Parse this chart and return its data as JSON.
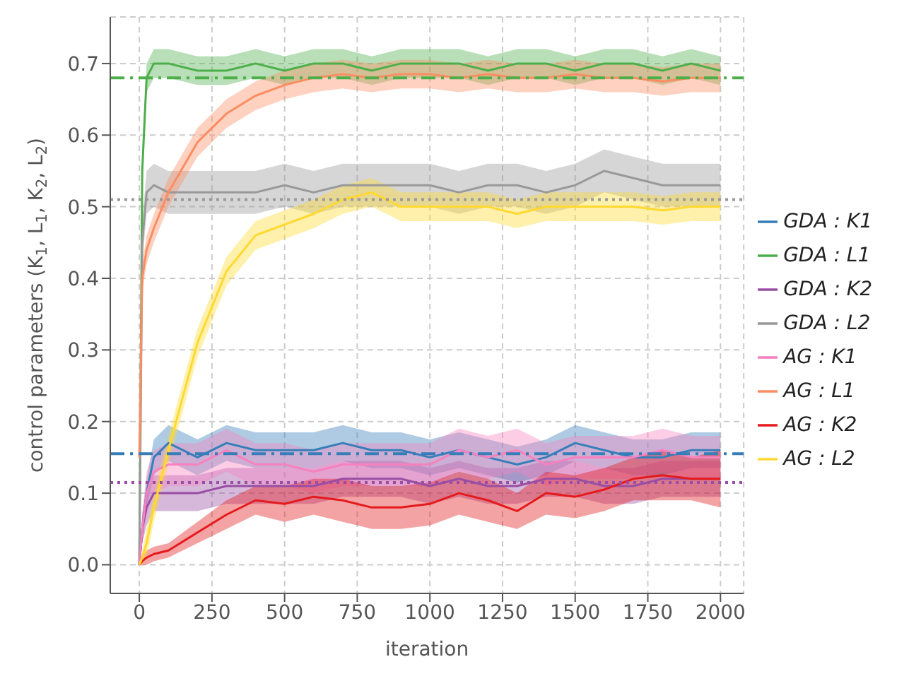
{
  "chart_data": {
    "type": "line",
    "xlabel": "iteration",
    "ylabel": "control parameters (K$_{1}$, L$_{1}$, K$_{2}$, L$_{2}$)",
    "x": [
      0,
      10,
      25,
      50,
      100,
      200,
      300,
      400,
      500,
      600,
      700,
      800,
      900,
      1000,
      1100,
      1200,
      1300,
      1400,
      1500,
      1600,
      1700,
      1800,
      1900,
      2000
    ],
    "xlim": [
      -100,
      2080
    ],
    "xticks": [
      0,
      250,
      500,
      750,
      1000,
      1250,
      1500,
      1750,
      2000
    ],
    "ylim": [
      -0.04,
      0.765
    ],
    "yticks": [
      {
        "value": 0,
        "label": "0.0"
      },
      0.1,
      0.2,
      0.3,
      0.4,
      0.5,
      0.6,
      0.7
    ],
    "grid": true,
    "legend": "right",
    "series": [
      {
        "name": "GDA : K1",
        "color": "#377eb8",
        "values": [
          0.0,
          0.05,
          0.1,
          0.15,
          0.17,
          0.15,
          0.17,
          0.16,
          0.16,
          0.16,
          0.17,
          0.16,
          0.16,
          0.15,
          0.16,
          0.15,
          0.14,
          0.15,
          0.17,
          0.16,
          0.15,
          0.15,
          0.16,
          0.16
        ],
        "lower": [
          0.0,
          0.03,
          0.08,
          0.125,
          0.145,
          0.125,
          0.145,
          0.135,
          0.135,
          0.135,
          0.145,
          0.135,
          0.135,
          0.125,
          0.135,
          0.125,
          0.115,
          0.125,
          0.145,
          0.135,
          0.125,
          0.125,
          0.135,
          0.135
        ],
        "upper": [
          0.0,
          0.07,
          0.12,
          0.175,
          0.195,
          0.175,
          0.195,
          0.185,
          0.185,
          0.185,
          0.195,
          0.185,
          0.185,
          0.175,
          0.185,
          0.175,
          0.165,
          0.175,
          0.195,
          0.185,
          0.175,
          0.175,
          0.185,
          0.185
        ]
      },
      {
        "name": "GDA : L1",
        "color": "#4daf4a",
        "values": [
          0.0,
          0.55,
          0.68,
          0.7,
          0.7,
          0.69,
          0.69,
          0.7,
          0.69,
          0.7,
          0.7,
          0.69,
          0.7,
          0.7,
          0.7,
          0.69,
          0.7,
          0.7,
          0.69,
          0.7,
          0.7,
          0.69,
          0.7,
          0.69
        ],
        "lower": [
          0.0,
          0.52,
          0.66,
          0.68,
          0.68,
          0.67,
          0.67,
          0.68,
          0.67,
          0.68,
          0.68,
          0.67,
          0.68,
          0.68,
          0.68,
          0.67,
          0.68,
          0.68,
          0.67,
          0.68,
          0.68,
          0.67,
          0.68,
          0.67
        ],
        "upper": [
          0.0,
          0.58,
          0.7,
          0.72,
          0.72,
          0.71,
          0.71,
          0.72,
          0.71,
          0.72,
          0.72,
          0.71,
          0.72,
          0.72,
          0.72,
          0.71,
          0.72,
          0.72,
          0.71,
          0.72,
          0.72,
          0.71,
          0.72,
          0.71
        ]
      },
      {
        "name": "GDA : K2",
        "color": "#984ea3",
        "values": [
          0.0,
          0.05,
          0.08,
          0.1,
          0.1,
          0.1,
          0.11,
          0.11,
          0.11,
          0.11,
          0.12,
          0.12,
          0.12,
          0.11,
          0.12,
          0.11,
          0.11,
          0.12,
          0.12,
          0.11,
          0.11,
          0.12,
          0.12,
          0.12
        ],
        "lower": [
          0.0,
          0.03,
          0.055,
          0.075,
          0.075,
          0.075,
          0.085,
          0.085,
          0.085,
          0.085,
          0.095,
          0.095,
          0.095,
          0.085,
          0.095,
          0.085,
          0.085,
          0.095,
          0.095,
          0.085,
          0.085,
          0.095,
          0.095,
          0.095
        ],
        "upper": [
          0.0,
          0.07,
          0.105,
          0.125,
          0.125,
          0.125,
          0.135,
          0.135,
          0.135,
          0.135,
          0.145,
          0.145,
          0.145,
          0.135,
          0.145,
          0.135,
          0.135,
          0.145,
          0.145,
          0.135,
          0.135,
          0.145,
          0.145,
          0.145
        ]
      },
      {
        "name": "GDA : L2",
        "color": "#999999",
        "values": [
          0.0,
          0.45,
          0.52,
          0.53,
          0.52,
          0.52,
          0.52,
          0.52,
          0.53,
          0.52,
          0.53,
          0.53,
          0.53,
          0.53,
          0.52,
          0.53,
          0.53,
          0.52,
          0.53,
          0.55,
          0.54,
          0.53,
          0.53,
          0.53
        ],
        "lower": [
          0.0,
          0.42,
          0.49,
          0.5,
          0.49,
          0.49,
          0.49,
          0.49,
          0.5,
          0.49,
          0.5,
          0.5,
          0.5,
          0.5,
          0.49,
          0.5,
          0.5,
          0.49,
          0.5,
          0.52,
          0.51,
          0.5,
          0.5,
          0.5
        ],
        "upper": [
          0.0,
          0.48,
          0.55,
          0.56,
          0.55,
          0.55,
          0.55,
          0.55,
          0.56,
          0.55,
          0.56,
          0.56,
          0.56,
          0.56,
          0.55,
          0.56,
          0.56,
          0.55,
          0.56,
          0.58,
          0.57,
          0.56,
          0.56,
          0.56
        ]
      },
      {
        "name": "AG : K1",
        "color": "#f781bf",
        "values": [
          0.0,
          0.05,
          0.1,
          0.13,
          0.14,
          0.14,
          0.16,
          0.14,
          0.14,
          0.13,
          0.14,
          0.14,
          0.14,
          0.14,
          0.16,
          0.15,
          0.16,
          0.14,
          0.15,
          0.15,
          0.15,
          0.16,
          0.15,
          0.15
        ],
        "lower": [
          0.0,
          0.03,
          0.07,
          0.1,
          0.11,
          0.11,
          0.13,
          0.11,
          0.11,
          0.1,
          0.11,
          0.11,
          0.11,
          0.11,
          0.13,
          0.12,
          0.13,
          0.11,
          0.12,
          0.12,
          0.12,
          0.13,
          0.12,
          0.12
        ],
        "upper": [
          0.0,
          0.07,
          0.13,
          0.16,
          0.17,
          0.17,
          0.19,
          0.17,
          0.17,
          0.16,
          0.17,
          0.17,
          0.17,
          0.17,
          0.19,
          0.18,
          0.19,
          0.17,
          0.18,
          0.18,
          0.18,
          0.19,
          0.18,
          0.18
        ]
      },
      {
        "name": "AG : L1",
        "color": "#fc8d62",
        "values": [
          0.15,
          0.4,
          0.44,
          0.47,
          0.52,
          0.59,
          0.63,
          0.655,
          0.67,
          0.68,
          0.685,
          0.68,
          0.685,
          0.685,
          0.68,
          0.685,
          0.68,
          0.68,
          0.685,
          0.68,
          0.68,
          0.675,
          0.68,
          0.68
        ],
        "lower": [
          0.13,
          0.38,
          0.42,
          0.45,
          0.5,
          0.57,
          0.61,
          0.635,
          0.65,
          0.66,
          0.665,
          0.66,
          0.665,
          0.665,
          0.66,
          0.665,
          0.66,
          0.66,
          0.665,
          0.66,
          0.66,
          0.655,
          0.66,
          0.66
        ],
        "upper": [
          0.17,
          0.42,
          0.46,
          0.49,
          0.54,
          0.61,
          0.65,
          0.675,
          0.69,
          0.7,
          0.705,
          0.7,
          0.705,
          0.705,
          0.7,
          0.705,
          0.7,
          0.7,
          0.705,
          0.7,
          0.7,
          0.695,
          0.7,
          0.7
        ]
      },
      {
        "name": "AG : K2",
        "color": "#e41a1c",
        "values": [
          0.0,
          0.005,
          0.01,
          0.015,
          0.02,
          0.045,
          0.07,
          0.09,
          0.085,
          0.095,
          0.09,
          0.08,
          0.08,
          0.085,
          0.1,
          0.09,
          0.075,
          0.1,
          0.095,
          0.105,
          0.12,
          0.125,
          0.12,
          0.12
        ],
        "lower": [
          0.0,
          0.0,
          0.0,
          0.005,
          0.01,
          0.03,
          0.05,
          0.07,
          0.06,
          0.07,
          0.06,
          0.05,
          0.05,
          0.055,
          0.07,
          0.06,
          0.05,
          0.07,
          0.065,
          0.075,
          0.09,
          0.09,
          0.09,
          0.08
        ],
        "upper": [
          0.0,
          0.01,
          0.02,
          0.025,
          0.03,
          0.06,
          0.09,
          0.11,
          0.11,
          0.12,
          0.12,
          0.11,
          0.11,
          0.115,
          0.13,
          0.12,
          0.1,
          0.13,
          0.125,
          0.135,
          0.15,
          0.16,
          0.15,
          0.16
        ]
      },
      {
        "name": "AG : L2",
        "color": "#ffd92f",
        "values": [
          0.0,
          0.01,
          0.03,
          0.08,
          0.16,
          0.31,
          0.41,
          0.46,
          0.475,
          0.49,
          0.51,
          0.52,
          0.5,
          0.5,
          0.5,
          0.5,
          0.49,
          0.5,
          0.5,
          0.5,
          0.5,
          0.495,
          0.5,
          0.5
        ],
        "lower": [
          0.0,
          0.0,
          0.01,
          0.06,
          0.14,
          0.29,
          0.39,
          0.44,
          0.455,
          0.47,
          0.49,
          0.5,
          0.48,
          0.48,
          0.48,
          0.48,
          0.47,
          0.48,
          0.48,
          0.48,
          0.48,
          0.475,
          0.48,
          0.48
        ],
        "upper": [
          0.0,
          0.02,
          0.05,
          0.1,
          0.18,
          0.33,
          0.43,
          0.48,
          0.495,
          0.51,
          0.53,
          0.54,
          0.52,
          0.52,
          0.52,
          0.52,
          0.51,
          0.52,
          0.52,
          0.52,
          0.52,
          0.515,
          0.52,
          0.52
        ]
      }
    ],
    "ref_lines": [
      {
        "axis": "y",
        "value": 0.68,
        "color": "#4daf4a",
        "line_style": "dashed"
      },
      {
        "axis": "y",
        "value": 0.51,
        "color": "#999999",
        "line_style": "dotted"
      },
      {
        "axis": "y",
        "value": 0.155,
        "color": "#377eb8",
        "line_style": "dashed"
      },
      {
        "axis": "y",
        "value": 0.115,
        "color": "#984ea3",
        "line_style": "dotted"
      }
    ]
  }
}
